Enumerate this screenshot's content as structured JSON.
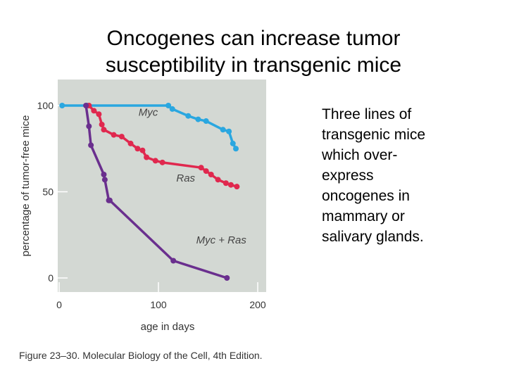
{
  "slide": {
    "title_line1": "Oncogenes can increase tumor",
    "title_line2": "susceptibility in transgenic mice",
    "side_text_lines": [
      "Three lines of",
      "transgenic mice",
      "which over-",
      "express",
      "oncogenes in",
      "mammary or",
      "salivary glands."
    ],
    "caption": "Figure 23–30. Molecular Biology of the Cell, 4th Edition."
  },
  "chart_data": {
    "type": "line",
    "xlabel": "age in days",
    "ylabel": "percentage of tumor-free mice",
    "xlim": [
      0,
      200
    ],
    "ylim": [
      0,
      100
    ],
    "x_ticks": [
      0,
      100,
      200
    ],
    "y_ticks": [
      0,
      50,
      100
    ],
    "grid": false,
    "background": "#d3d8d3",
    "series": [
      {
        "name": "Myc",
        "color": "#2aa7e0",
        "points": [
          [
            3,
            100
          ],
          [
            28,
            100
          ],
          [
            110,
            100
          ],
          [
            114,
            98
          ],
          [
            130,
            94
          ],
          [
            140,
            92
          ],
          [
            148,
            91
          ],
          [
            165,
            86
          ],
          [
            171,
            85
          ],
          [
            175,
            78
          ],
          [
            178,
            75
          ]
        ]
      },
      {
        "name": "Ras",
        "color": "#e0284e",
        "points": [
          [
            30,
            100
          ],
          [
            35,
            97
          ],
          [
            40,
            95
          ],
          [
            43,
            89
          ],
          [
            45,
            86
          ],
          [
            55,
            83
          ],
          [
            63,
            82
          ],
          [
            72,
            78
          ],
          [
            79,
            75
          ],
          [
            84,
            74
          ],
          [
            88,
            70
          ],
          [
            97,
            68
          ],
          [
            104,
            67
          ],
          [
            143,
            64
          ],
          [
            148,
            62
          ],
          [
            153,
            60
          ],
          [
            160,
            57
          ],
          [
            168,
            55
          ],
          [
            173,
            54
          ],
          [
            179,
            53
          ]
        ]
      },
      {
        "name": "Myc + Ras",
        "color": "#6a2f8e",
        "points": [
          [
            27,
            100
          ],
          [
            30,
            88
          ],
          [
            32,
            77
          ],
          [
            45,
            60
          ],
          [
            46,
            57
          ],
          [
            50,
            45
          ],
          [
            51,
            45
          ],
          [
            115,
            10
          ],
          [
            169,
            0
          ]
        ]
      }
    ],
    "labels": [
      {
        "series": "Myc",
        "text": "Myc",
        "x": 80,
        "y": 94
      },
      {
        "series": "Ras",
        "text": "Ras",
        "x": 118,
        "y": 56
      },
      {
        "series": "Myc + Ras",
        "text": "Myc + Ras",
        "x": 138,
        "y": 20
      }
    ]
  }
}
